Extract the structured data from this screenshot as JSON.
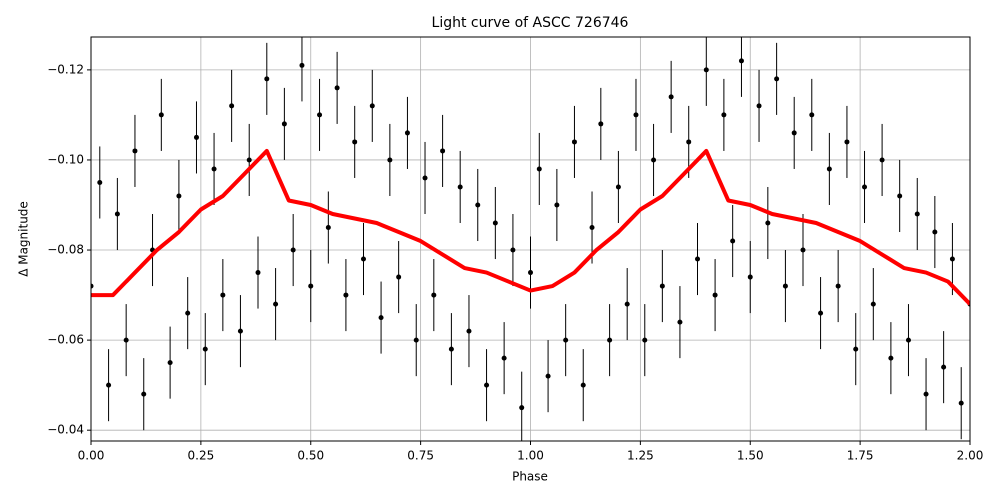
{
  "chart_data": {
    "type": "scatter",
    "title": "Light curve of ASCC 726746",
    "x_label": "Phase",
    "y_label": "Δ Magnitude",
    "xlim": [
      0,
      2
    ],
    "ylim": [
      -0.0376,
      -0.1273
    ],
    "grid": true,
    "xticks": [
      {
        "value": 0,
        "label": "0.00"
      },
      {
        "value": 0.25,
        "label": "0.25"
      },
      {
        "value": 0.5,
        "label": "0.50"
      },
      {
        "value": 0.75,
        "label": "0.75"
      },
      {
        "value": 1,
        "label": "1.00"
      },
      {
        "value": 1.25,
        "label": "1.25"
      },
      {
        "value": 1.5,
        "label": "1.50"
      },
      {
        "value": 1.75,
        "label": "1.75"
      },
      {
        "value": 2,
        "label": "2.00"
      }
    ],
    "yticks": [
      {
        "value": -0.12,
        "label": "−0.12"
      },
      {
        "value": -0.1,
        "label": "−0.10"
      },
      {
        "value": -0.08,
        "label": "−0.08"
      },
      {
        "value": -0.06,
        "label": "−0.06"
      },
      {
        "value": -0.04,
        "label": "−0.04"
      }
    ],
    "series": [
      {
        "type": "errorbar",
        "color": "#000000",
        "error": 0.008,
        "x": [
          0,
          0.02,
          0.04,
          0.06,
          0.08,
          0.1,
          0.12,
          0.14,
          0.16,
          0.18,
          0.2,
          0.22,
          0.24,
          0.26,
          0.28,
          0.3,
          0.32,
          0.34,
          0.36,
          0.38,
          0.4,
          0.42,
          0.44,
          0.46,
          0.48,
          0.5,
          0.52,
          0.54,
          0.56,
          0.58,
          0.6,
          0.62,
          0.64,
          0.66,
          0.68,
          0.7,
          0.72,
          0.74,
          0.76,
          0.78,
          0.8,
          0.82,
          0.84,
          0.86,
          0.88,
          0.9,
          0.92,
          0.94,
          0.96,
          0.98,
          1,
          1.02,
          1.04,
          1.06,
          1.08,
          1.1,
          1.12,
          1.14,
          1.16,
          1.18,
          1.2,
          1.22,
          1.24,
          1.26,
          1.28,
          1.3,
          1.32,
          1.34,
          1.36,
          1.38,
          1.4,
          1.42,
          1.44,
          1.46,
          1.48,
          1.5,
          1.52,
          1.54,
          1.56,
          1.58,
          1.6,
          1.62,
          1.64,
          1.66,
          1.68,
          1.7,
          1.72,
          1.74,
          1.76,
          1.78,
          1.8,
          1.82,
          1.84,
          1.86,
          1.88,
          1.9,
          1.92,
          1.94,
          1.96,
          1.98,
          2
        ],
        "values": [
          -0.072,
          -0.095,
          -0.05,
          -0.088,
          -0.06,
          -0.102,
          -0.048,
          -0.08,
          -0.11,
          -0.055,
          -0.092,
          -0.066,
          -0.105,
          -0.058,
          -0.098,
          -0.07,
          -0.112,
          -0.062,
          -0.1,
          -0.075,
          -0.118,
          -0.068,
          -0.108,
          -0.08,
          -0.121,
          -0.072,
          -0.11,
          -0.085,
          -0.116,
          -0.07,
          -0.104,
          -0.078,
          -0.112,
          -0.065,
          -0.1,
          -0.074,
          -0.106,
          -0.06,
          -0.096,
          -0.07,
          -0.102,
          -0.058,
          -0.094,
          -0.062,
          -0.09,
          -0.05,
          -0.086,
          -0.056,
          -0.08,
          -0.045,
          -0.075,
          -0.098,
          -0.052,
          -0.09,
          -0.06,
          -0.104,
          -0.05,
          -0.085,
          -0.108,
          -0.06,
          -0.094,
          -0.068,
          -0.11,
          -0.06,
          -0.1,
          -0.072,
          -0.114,
          -0.064,
          -0.104,
          -0.078,
          -0.12,
          -0.07,
          -0.11,
          -0.082,
          -0.122,
          -0.074,
          -0.112,
          -0.086,
          -0.118,
          -0.072,
          -0.106,
          -0.08,
          -0.11,
          -0.066,
          -0.098,
          -0.072,
          -0.104,
          -0.058,
          -0.094,
          -0.068,
          -0.1,
          -0.056,
          -0.092,
          -0.06,
          -0.088,
          -0.048,
          -0.084,
          -0.054,
          -0.078,
          -0.046,
          -0.068
        ]
      },
      {
        "type": "line",
        "color": "#ff0000",
        "x": [
          0,
          0.05,
          0.1,
          0.15,
          0.2,
          0.25,
          0.3,
          0.35,
          0.4,
          0.45,
          0.5,
          0.55,
          0.6,
          0.65,
          0.7,
          0.75,
          0.8,
          0.85,
          0.9,
          0.95,
          1,
          1.05,
          1.1,
          1.15,
          1.2,
          1.25,
          1.3,
          1.35,
          1.4,
          1.45,
          1.5,
          1.55,
          1.6,
          1.65,
          1.7,
          1.75,
          1.8,
          1.85,
          1.9,
          1.95,
          2
        ],
        "values": [
          -0.07,
          -0.07,
          -0.075,
          -0.08,
          -0.084,
          -0.089,
          -0.092,
          -0.097,
          -0.102,
          -0.091,
          -0.09,
          -0.088,
          -0.087,
          -0.086,
          -0.084,
          -0.082,
          -0.079,
          -0.076,
          -0.075,
          -0.073,
          -0.071,
          -0.072,
          -0.075,
          -0.08,
          -0.084,
          -0.089,
          -0.092,
          -0.097,
          -0.102,
          -0.091,
          -0.09,
          -0.088,
          -0.087,
          -0.086,
          -0.084,
          -0.082,
          -0.079,
          -0.076,
          -0.075,
          -0.073,
          -0.068
        ]
      }
    ]
  }
}
